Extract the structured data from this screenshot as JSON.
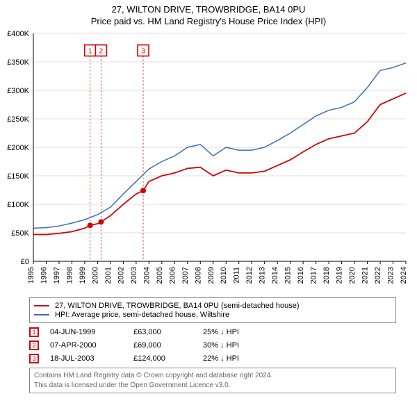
{
  "title": "27, WILTON DRIVE, TROWBRIDGE, BA14 0PU",
  "subtitle": "Price paid vs. HM Land Registry's House Price Index (HPI)",
  "chart": {
    "type": "line",
    "background_color": "#ffffff",
    "plot_background": "#ffffff",
    "axis_color": "#000000",
    "grid_color": "#dddddd",
    "title_fontsize": 13,
    "label_fontsize": 11,
    "tick_fontsize": 11,
    "y_axis": {
      "label": "",
      "min": 0,
      "max": 400000,
      "tick_step": 50000,
      "ticks": [
        "£0",
        "£50K",
        "£100K",
        "£150K",
        "£200K",
        "£250K",
        "£300K",
        "£350K",
        "£400K"
      ]
    },
    "x_axis": {
      "min": 1995,
      "max": 2024,
      "ticks": [
        1995,
        1996,
        1997,
        1998,
        1999,
        2000,
        2001,
        2002,
        2003,
        2004,
        2005,
        2006,
        2007,
        2008,
        2009,
        2010,
        2011,
        2012,
        2013,
        2014,
        2015,
        2016,
        2017,
        2018,
        2019,
        2020,
        2021,
        2022,
        2023,
        2024
      ]
    },
    "series": [
      {
        "name": "27, WILTON DRIVE, TROWBRIDGE, BA14 0PU (semi-detached house)",
        "color": "#d30000",
        "line_width": 1.8,
        "points": [
          [
            1995,
            47000
          ],
          [
            1996,
            47000
          ],
          [
            1997,
            49000
          ],
          [
            1998,
            52000
          ],
          [
            1999,
            58000
          ],
          [
            1999.42,
            63000
          ],
          [
            2000,
            66000
          ],
          [
            2000.27,
            69000
          ],
          [
            2001,
            80000
          ],
          [
            2002,
            100000
          ],
          [
            2003,
            118000
          ],
          [
            2003.55,
            124000
          ],
          [
            2004,
            140000
          ],
          [
            2005,
            150000
          ],
          [
            2006,
            155000
          ],
          [
            2007,
            163000
          ],
          [
            2008,
            165000
          ],
          [
            2009,
            150000
          ],
          [
            2010,
            160000
          ],
          [
            2011,
            155000
          ],
          [
            2012,
            155000
          ],
          [
            2013,
            158000
          ],
          [
            2014,
            168000
          ],
          [
            2015,
            178000
          ],
          [
            2016,
            192000
          ],
          [
            2017,
            205000
          ],
          [
            2018,
            215000
          ],
          [
            2019,
            220000
          ],
          [
            2020,
            225000
          ],
          [
            2021,
            245000
          ],
          [
            2022,
            275000
          ],
          [
            2023,
            285000
          ],
          [
            2024,
            295000
          ]
        ]
      },
      {
        "name": "HPI: Average price, semi-detached house, Wiltshire",
        "color": "#3b6db8",
        "line_width": 1.5,
        "points": [
          [
            1995,
            58000
          ],
          [
            1996,
            59000
          ],
          [
            1997,
            62000
          ],
          [
            1998,
            67000
          ],
          [
            1999,
            73000
          ],
          [
            2000,
            82000
          ],
          [
            2001,
            95000
          ],
          [
            2002,
            118000
          ],
          [
            2003,
            140000
          ],
          [
            2004,
            162000
          ],
          [
            2005,
            175000
          ],
          [
            2006,
            185000
          ],
          [
            2007,
            200000
          ],
          [
            2008,
            205000
          ],
          [
            2009,
            185000
          ],
          [
            2010,
            200000
          ],
          [
            2011,
            195000
          ],
          [
            2012,
            195000
          ],
          [
            2013,
            200000
          ],
          [
            2014,
            212000
          ],
          [
            2015,
            225000
          ],
          [
            2016,
            240000
          ],
          [
            2017,
            255000
          ],
          [
            2018,
            265000
          ],
          [
            2019,
            270000
          ],
          [
            2020,
            280000
          ],
          [
            2021,
            305000
          ],
          [
            2022,
            335000
          ],
          [
            2023,
            340000
          ],
          [
            2024,
            348000
          ]
        ]
      }
    ],
    "markers": [
      {
        "n": "1",
        "x": 1999.42,
        "y": 63000,
        "color": "#d30000"
      },
      {
        "n": "2",
        "x": 2000.27,
        "y": 69000,
        "color": "#d30000"
      },
      {
        "n": "3",
        "x": 2003.55,
        "y": 124000,
        "color": "#d30000"
      }
    ],
    "marker_box_top_y": 370000,
    "marker_line_color": "#d30000",
    "marker_line_dash": "2,3",
    "marker_dot_radius": 4
  },
  "legend": {
    "border_color": "#888888",
    "rows": [
      {
        "color": "#d30000",
        "label": "27, WILTON DRIVE, TROWBRIDGE, BA14 0PU (semi-detached house)"
      },
      {
        "color": "#3b6db8",
        "label": "HPI: Average price, semi-detached house, Wiltshire"
      }
    ]
  },
  "transactions": [
    {
      "n": "1",
      "date": "04-JUN-1999",
      "price": "£63,000",
      "delta": "25% ↓ HPI",
      "marker_color": "#d30000"
    },
    {
      "n": "2",
      "date": "07-APR-2000",
      "price": "£69,000",
      "delta": "30% ↓ HPI",
      "marker_color": "#d30000"
    },
    {
      "n": "3",
      "date": "18-JUL-2003",
      "price": "£124,000",
      "delta": "22% ↓ HPI",
      "marker_color": "#d30000"
    }
  ],
  "credits": {
    "line1": "Contains HM Land Registry data © Crown copyright and database right 2024.",
    "line2": "This data is licensed under the Open Government Licence v3.0."
  }
}
